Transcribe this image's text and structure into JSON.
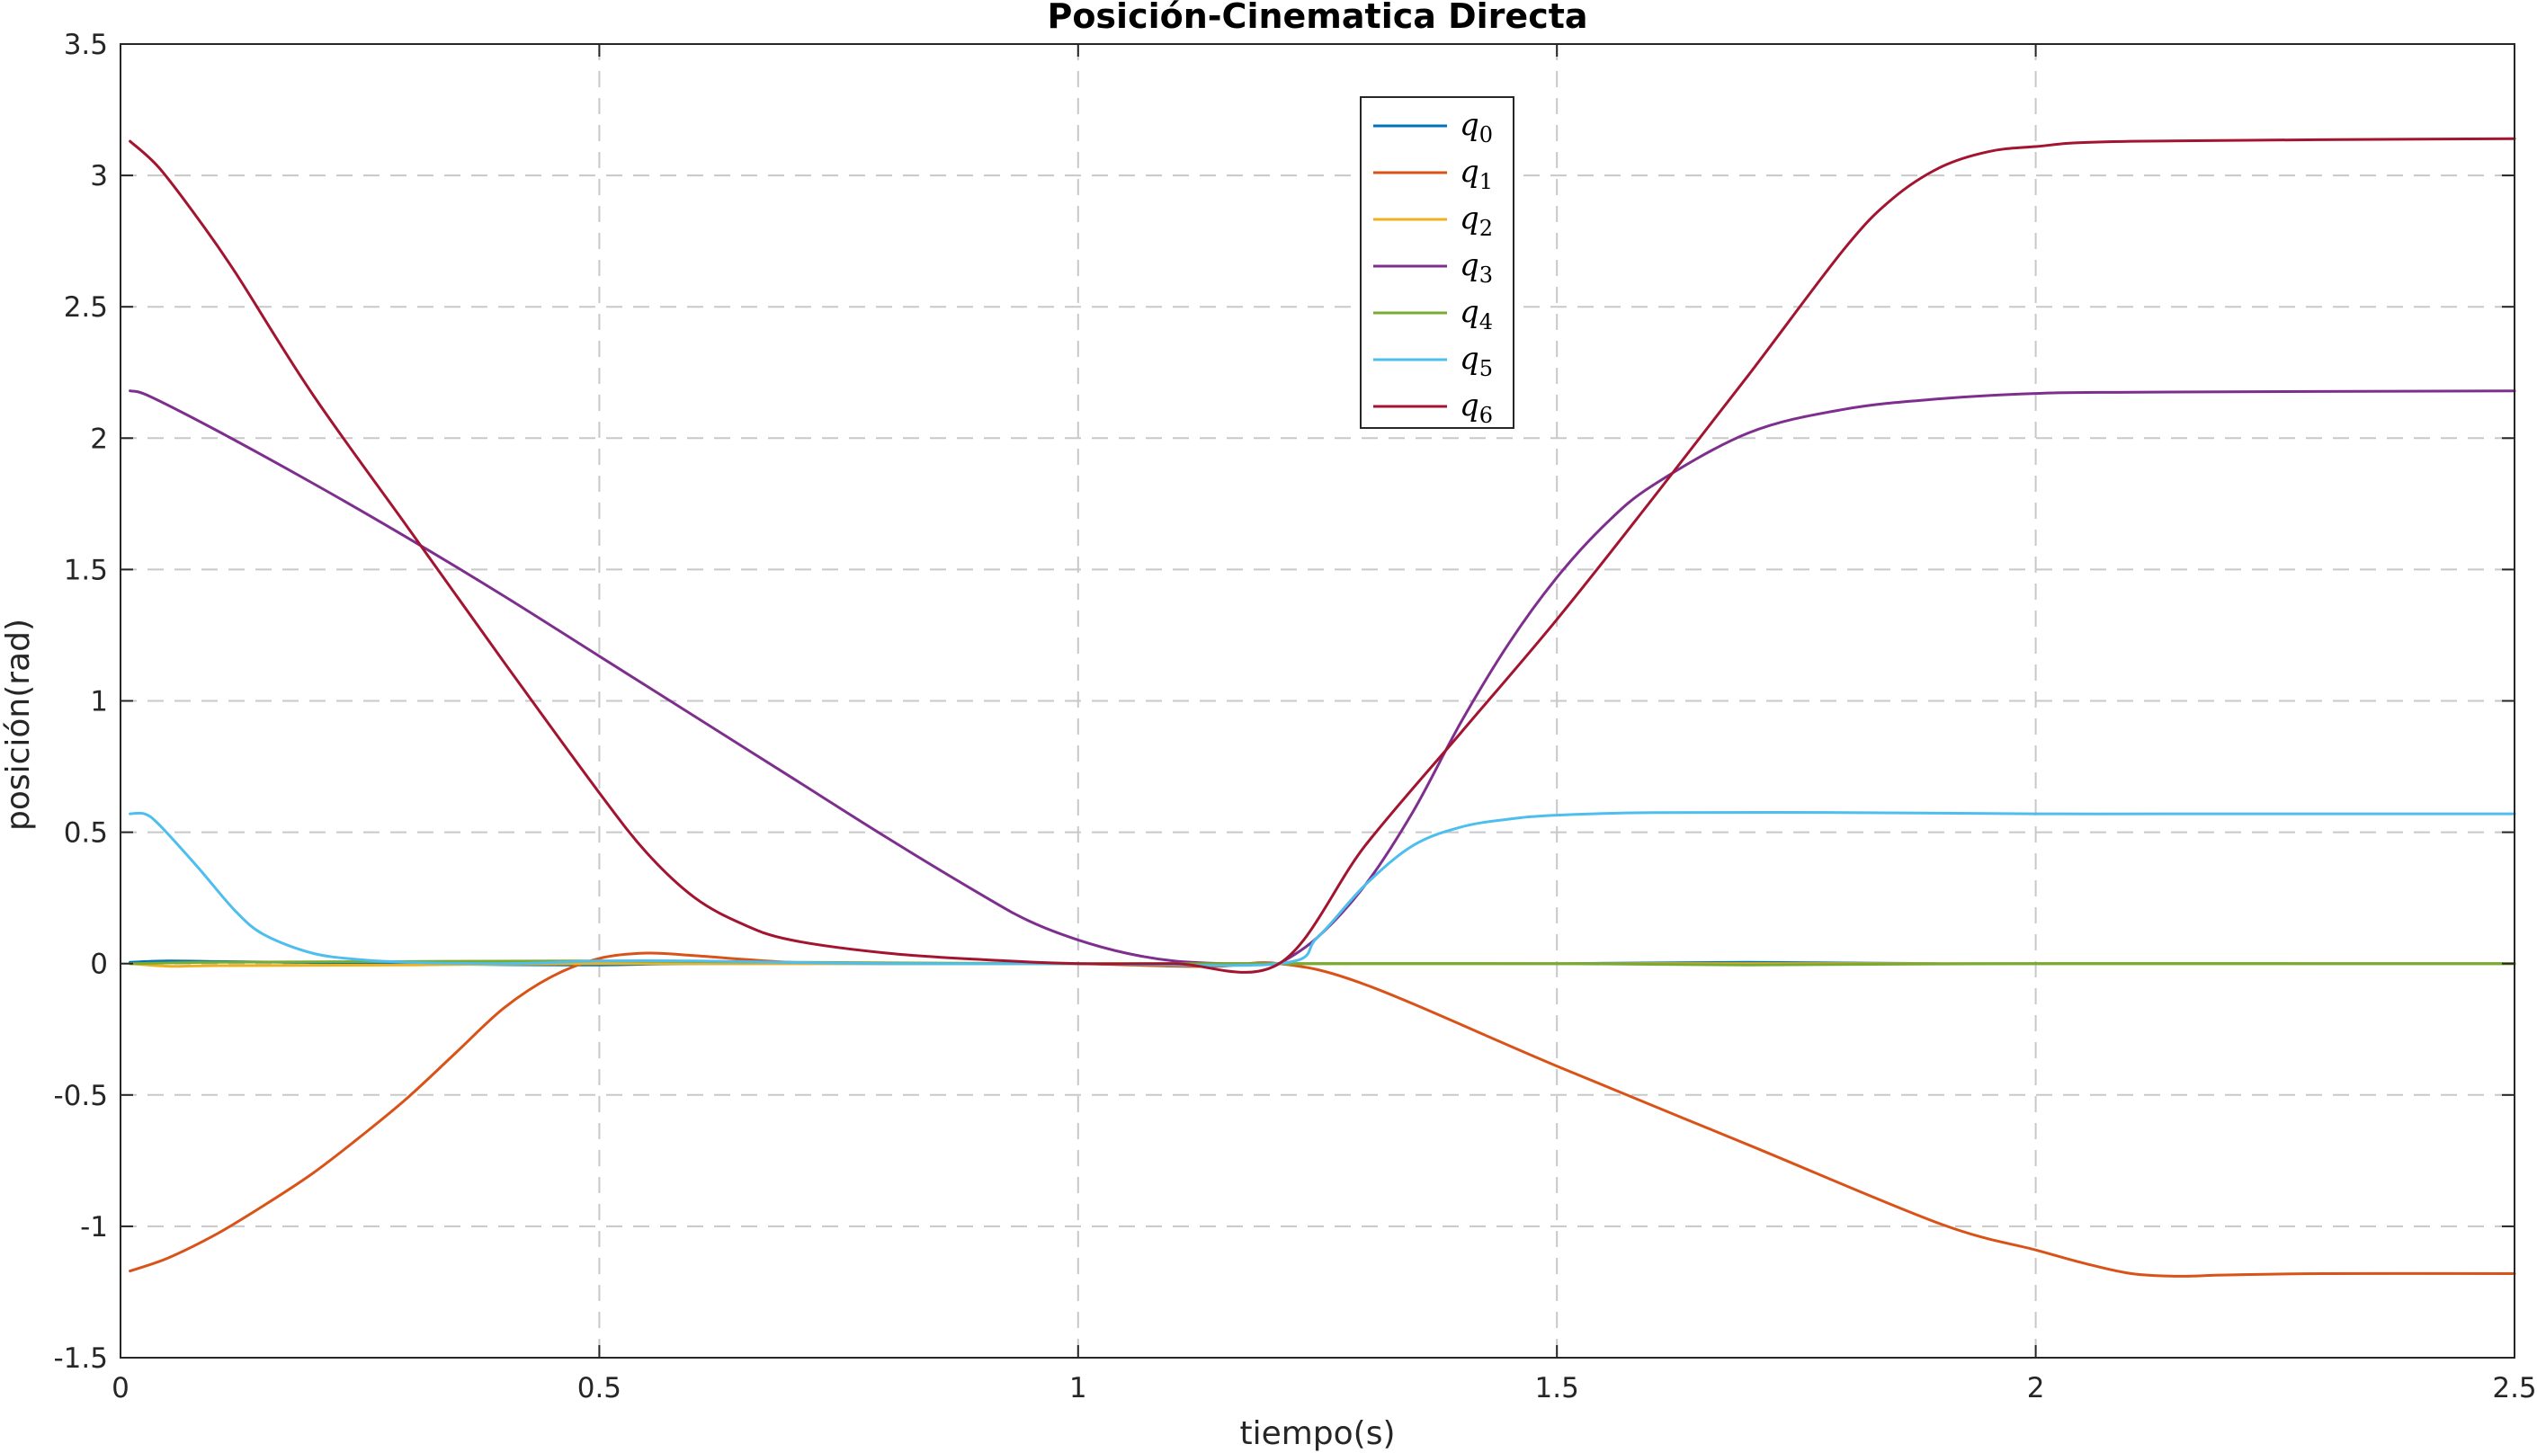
{
  "chart_data": {
    "type": "line",
    "title": "Posición-Cinematica Directa",
    "xlabel": "tiempo(s)",
    "ylabel": "posición(rad)",
    "xlim": [
      0,
      2.5
    ],
    "ylim": [
      -1.5,
      3.5
    ],
    "xticks": [
      0,
      0.5,
      1,
      1.5,
      2,
      2.5
    ],
    "xtick_labels": [
      "0",
      "0.5",
      "1",
      "1.5",
      "2",
      "2.5"
    ],
    "yticks": [
      -1.5,
      -1,
      -0.5,
      0,
      0.5,
      1,
      1.5,
      2,
      2.5,
      3,
      3.5
    ],
    "ytick_labels": [
      "-1.5",
      "-1",
      "-0.5",
      "0",
      "0.5",
      "1",
      "1.5",
      "2",
      "2.5",
      "3",
      "3.5"
    ],
    "grid": true,
    "legend_position": "top-center",
    "series": [
      {
        "name": "q",
        "sub": "0",
        "color": "#0072BD",
        "x": [
          0.01,
          0.05,
          0.1,
          0.2,
          0.3,
          0.4,
          0.5,
          0.6,
          0.8,
          1.0,
          1.1,
          1.21,
          1.3,
          1.5,
          1.7,
          1.9,
          2.1,
          2.3,
          2.5
        ],
        "y": [
          0.005,
          0.01,
          0.008,
          0.004,
          0.0,
          -0.004,
          -0.005,
          0.0,
          0.0,
          0.0,
          0.0,
          0.0,
          0.0,
          0.0,
          0.005,
          0.0,
          0.0,
          0.0,
          0.0
        ]
      },
      {
        "name": "q",
        "sub": "1",
        "color": "#D95319",
        "x": [
          0.01,
          0.05,
          0.1,
          0.15,
          0.2,
          0.25,
          0.3,
          0.35,
          0.4,
          0.45,
          0.5,
          0.55,
          0.6,
          0.7,
          0.8,
          0.9,
          1.0,
          1.1,
          1.15,
          1.21,
          1.3,
          1.5,
          1.7,
          1.9,
          2.0,
          2.05,
          2.1,
          2.15,
          2.2,
          2.3,
          2.5
        ],
        "y": [
          -1.17,
          -1.12,
          -1.03,
          -0.92,
          -0.8,
          -0.66,
          -0.51,
          -0.34,
          -0.17,
          -0.05,
          0.02,
          0.04,
          0.03,
          0.005,
          0.0,
          0.0,
          0.0,
          -0.01,
          -0.01,
          0.0,
          -0.08,
          -0.39,
          -0.69,
          -0.99,
          -1.09,
          -1.14,
          -1.18,
          -1.19,
          -1.185,
          -1.18,
          -1.18
        ]
      },
      {
        "name": "q",
        "sub": "2",
        "color": "#EDB120",
        "x": [
          0.01,
          0.05,
          0.1,
          0.3,
          0.5,
          0.7,
          1.0,
          1.21,
          1.5,
          2.0,
          2.5
        ],
        "y": [
          0.0,
          -0.01,
          -0.008,
          -0.005,
          0.0,
          0.0,
          0.0,
          0.0,
          0.0,
          0.0,
          0.0
        ]
      },
      {
        "name": "q",
        "sub": "3",
        "color": "#7E2F8E",
        "x": [
          0.01,
          0.03,
          0.1,
          0.2,
          0.3,
          0.4,
          0.5,
          0.6,
          0.7,
          0.8,
          0.9,
          0.95,
          1.0,
          1.05,
          1.1,
          1.15,
          1.2,
          1.21,
          1.25,
          1.3,
          1.35,
          1.4,
          1.45,
          1.5,
          1.55,
          1.6,
          1.7,
          1.8,
          1.9,
          2.0,
          2.1,
          2.5
        ],
        "y": [
          2.18,
          2.16,
          2.03,
          1.83,
          1.62,
          1.4,
          1.17,
          0.94,
          0.71,
          0.48,
          0.26,
          0.16,
          0.09,
          0.04,
          0.01,
          0.0,
          0.0,
          0.0,
          0.1,
          0.3,
          0.58,
          0.92,
          1.22,
          1.47,
          1.67,
          1.82,
          2.02,
          2.11,
          2.15,
          2.17,
          2.175,
          2.18
        ]
      },
      {
        "name": "q",
        "sub": "4",
        "color": "#77AC30",
        "x": [
          0.01,
          0.1,
          0.3,
          0.5,
          0.7,
          1.0,
          1.21,
          1.5,
          1.7,
          2.0,
          2.3,
          2.5
        ],
        "y": [
          0.0,
          0.005,
          0.008,
          0.01,
          0.005,
          0.0,
          0.0,
          0.0,
          -0.005,
          0.0,
          0.0,
          0.0
        ]
      },
      {
        "name": "q",
        "sub": "5",
        "color": "#4DBEEE",
        "x": [
          0.01,
          0.025,
          0.04,
          0.08,
          0.12,
          0.15,
          0.2,
          0.25,
          0.3,
          0.4,
          0.5,
          0.6,
          0.8,
          1.0,
          1.21,
          1.25,
          1.3,
          1.35,
          1.4,
          1.45,
          1.5,
          1.6,
          1.8,
          2.0,
          2.2,
          2.5
        ],
        "y": [
          0.57,
          0.57,
          0.53,
          0.37,
          0.2,
          0.11,
          0.04,
          0.015,
          0.005,
          0.0,
          0.01,
          0.01,
          0.0,
          0.0,
          0.0,
          0.1,
          0.3,
          0.45,
          0.52,
          0.55,
          0.565,
          0.575,
          0.575,
          0.57,
          0.57,
          0.57
        ]
      },
      {
        "name": "q",
        "sub": "6",
        "color": "#A2142F",
        "x": [
          0.01,
          0.04,
          0.08,
          0.12,
          0.2,
          0.3,
          0.4,
          0.5,
          0.55,
          0.6,
          0.65,
          0.7,
          0.8,
          0.9,
          1.0,
          1.1,
          1.21,
          1.3,
          1.4,
          1.5,
          1.6,
          1.7,
          1.8,
          1.85,
          1.9,
          1.95,
          2.0,
          2.1,
          2.5
        ],
        "y": [
          3.13,
          3.03,
          2.84,
          2.63,
          2.17,
          1.66,
          1.15,
          0.65,
          0.42,
          0.25,
          0.15,
          0.09,
          0.04,
          0.015,
          0.0,
          0.0,
          0.0,
          0.45,
          0.88,
          1.31,
          1.77,
          2.24,
          2.72,
          2.91,
          3.03,
          3.09,
          3.11,
          3.13,
          3.14
        ]
      }
    ]
  }
}
